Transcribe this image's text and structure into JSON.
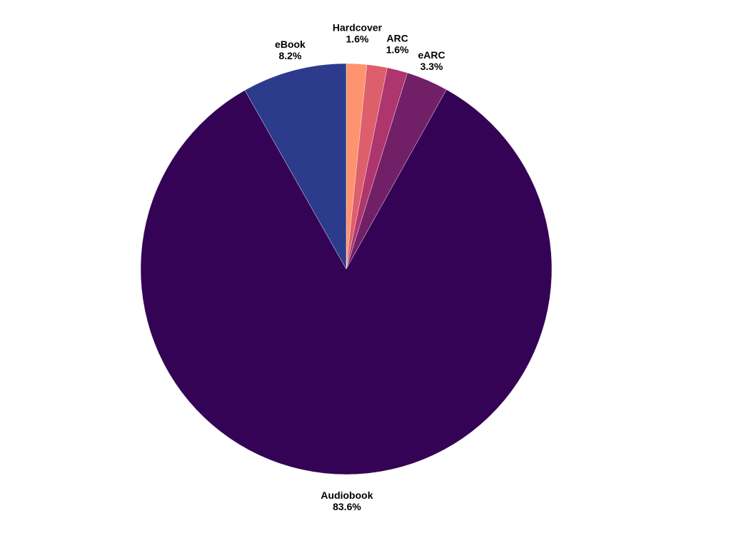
{
  "chart_data": {
    "type": "pie",
    "start_angle": "12 o'clock",
    "direction": "clockwise",
    "slices": [
      {
        "label": "Hardcover",
        "value": 1.6,
        "value_label": "1.6%",
        "color": "#fe9370"
      },
      {
        "label": "",
        "value": 1.6,
        "value_label": "",
        "color": "#dc5f6b"
      },
      {
        "label": "ARC",
        "value": 1.6,
        "value_label": "1.6%",
        "color": "#ae356d"
      },
      {
        "label": "eARC",
        "value": 3.3,
        "value_label": "3.3%",
        "color": "#711f67"
      },
      {
        "label": "Audiobook",
        "value": 83.6,
        "value_label": "83.6%",
        "color": "#340355"
      },
      {
        "label": "eBook",
        "value": 8.2,
        "value_label": "8.2%",
        "color": "#2c3b8b"
      }
    ]
  }
}
